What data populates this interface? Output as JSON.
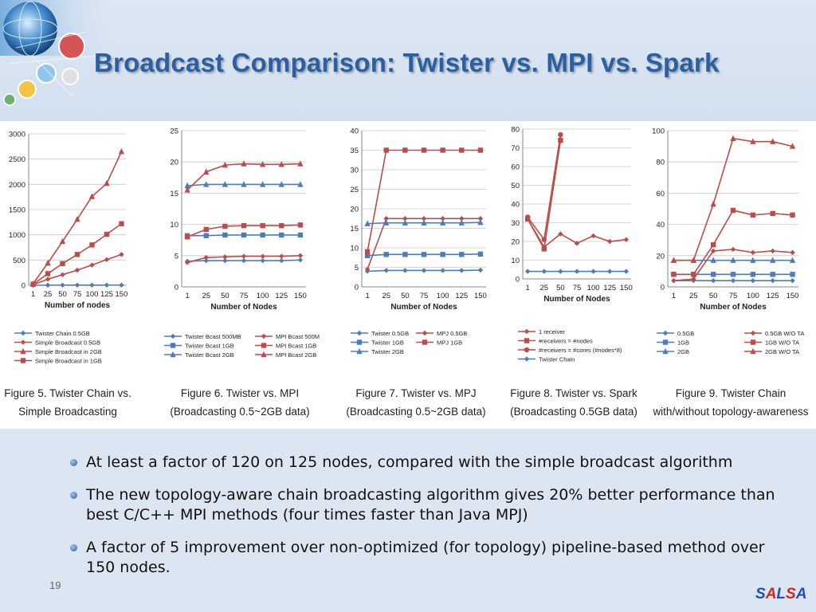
{
  "slide": {
    "title": "Broadcast Comparison: Twister vs. MPI vs. Spark",
    "page_number": "19",
    "brand": [
      "S",
      "A",
      "L",
      "S",
      "A"
    ],
    "brand_colors": [
      "#1f4fbf",
      "#d8261c",
      "#1f4fbf",
      "#d8261c",
      "#1f4fbf"
    ],
    "header_icon": "globe-network-logo-icon",
    "bullet_icon": "blue-orb-bullet-icon",
    "bullets": [
      "At least a factor of 120 on 125 nodes, compared with the simple broadcast algorithm",
      "The new topology-aware chain broadcasting algorithm gives 20% better performance than best C/C++ MPI methods (four times faster than Java MPJ)",
      "A factor of 5 improvement over non-optimized (for topology) pipeline-based method over 150 nodes."
    ]
  },
  "chart_data": [
    {
      "type": "line",
      "caption": [
        "Figure 5. Twister Chain vs.",
        "Simple Broadcasting"
      ],
      "xlabel": "Number of nodes",
      "ylabel": "",
      "x": [
        "1",
        "25",
        "50",
        "75",
        "100",
        "125",
        "150"
      ],
      "ylim": [
        0,
        3000
      ],
      "yticks": [
        0,
        500,
        1000,
        1500,
        2000,
        2500,
        3000
      ],
      "legend_columns": 1,
      "series": [
        {
          "name": "Twister Chain 0.5GB",
          "color": "#4a7ebb",
          "marker": "diamond",
          "values": [
            0,
            2,
            3,
            3,
            3,
            4,
            4
          ]
        },
        {
          "name": "Simple Broadcast 0.5GB",
          "color": "#be4b48",
          "marker": "diamond",
          "values": [
            10,
            120,
            210,
            300,
            400,
            510,
            610
          ]
        },
        {
          "name": "Simple Broadcast in 2GB",
          "color": "#be4b48",
          "marker": "triangle",
          "values": [
            30,
            440,
            870,
            1310,
            1760,
            2020,
            2650
          ]
        },
        {
          "name": "Simple Broadcast in 1GB",
          "color": "#be4b48",
          "marker": "square",
          "values": [
            20,
            230,
            430,
            610,
            800,
            1010,
            1220
          ]
        }
      ]
    },
    {
      "type": "line",
      "caption": [
        "Figure 6. Twister vs. MPI",
        "(Broadcasting 0.5~2GB data)"
      ],
      "xlabel": "Number of Nodes",
      "ylabel": "",
      "x": [
        "1",
        "25",
        "50",
        "75",
        "100",
        "125",
        "150"
      ],
      "ylim": [
        0,
        25
      ],
      "yticks": [
        0,
        5,
        10,
        15,
        20,
        25
      ],
      "legend_columns": 2,
      "series": [
        {
          "name": "Twister Bcast 500MB",
          "color": "#4a7ebb",
          "marker": "diamond",
          "values": [
            4.1,
            4.2,
            4.2,
            4.2,
            4.2,
            4.2,
            4.3
          ]
        },
        {
          "name": "MPI Bcast 500M",
          "color": "#be4b48",
          "marker": "diamond",
          "values": [
            3.9,
            4.7,
            4.8,
            4.9,
            4.9,
            4.9,
            5.0
          ]
        },
        {
          "name": "Twister Bcast 1GB",
          "color": "#4a7ebb",
          "marker": "square",
          "values": [
            8.2,
            8.2,
            8.3,
            8.3,
            8.3,
            8.3,
            8.3
          ]
        },
        {
          "name": "MPI Bcast 1GB",
          "color": "#be4b48",
          "marker": "square",
          "values": [
            8.0,
            9.2,
            9.7,
            9.8,
            9.8,
            9.8,
            9.9
          ]
        },
        {
          "name": "Twister Bcast 2GB",
          "color": "#4a7ebb",
          "marker": "triangle",
          "values": [
            16.2,
            16.4,
            16.4,
            16.4,
            16.4,
            16.4,
            16.4
          ]
        },
        {
          "name": "MPI Bcast 2GB",
          "color": "#be4b48",
          "marker": "triangle",
          "values": [
            15.5,
            18.4,
            19.5,
            19.7,
            19.6,
            19.6,
            19.7
          ]
        }
      ]
    },
    {
      "type": "line",
      "caption": [
        "Figure 7. Twister vs. MPJ",
        "(Broadcasting 0.5~2GB data)"
      ],
      "xlabel": "Number of Nodes",
      "ylabel": "",
      "x": [
        "1",
        "25",
        "50",
        "75",
        "100",
        "125",
        "150"
      ],
      "ylim": [
        0,
        40
      ],
      "yticks": [
        0,
        5,
        10,
        15,
        20,
        25,
        30,
        35,
        40
      ],
      "legend_columns": 2,
      "series": [
        {
          "name": "Twister 0.5GB",
          "color": "#4a7ebb",
          "marker": "diamond",
          "values": [
            4.0,
            4.2,
            4.2,
            4.2,
            4.2,
            4.2,
            4.3
          ]
        },
        {
          "name": "MPJ 0.5GB",
          "color": "#be4b48",
          "marker": "diamond",
          "values": [
            4.5,
            17.5,
            17.5,
            17.5,
            17.5,
            17.5,
            17.5
          ]
        },
        {
          "name": "Twister 1GB",
          "color": "#4a7ebb",
          "marker": "square",
          "values": [
            8.0,
            8.3,
            8.3,
            8.3,
            8.3,
            8.3,
            8.4
          ]
        },
        {
          "name": "MPJ 1GB",
          "color": "#be4b48",
          "marker": "square",
          "values": [
            9.0,
            35.0,
            35.0,
            35.0,
            35.0,
            35.0,
            35.0
          ]
        },
        {
          "name": "Twister  2GB",
          "color": "#4a7ebb",
          "marker": "triangle",
          "values": [
            16.2,
            16.4,
            16.4,
            16.4,
            16.4,
            16.4,
            16.5
          ]
        }
      ]
    },
    {
      "type": "line",
      "caption": [
        "Figure 8. Twister vs. Spark",
        "(Broadcasting 0.5GB data)"
      ],
      "xlabel": "Number of Nodes",
      "ylabel": "",
      "x": [
        "1",
        "25",
        "50",
        "75",
        "100",
        "125",
        "150"
      ],
      "ylim": [
        0,
        80
      ],
      "yticks": [
        0,
        10,
        20,
        30,
        40,
        50,
        60,
        70,
        80
      ],
      "legend_columns": 1,
      "series": [
        {
          "name": "1 receiver",
          "color": "#be4b48",
          "marker": "diamond",
          "values": [
            32,
            17,
            24,
            19,
            23,
            20,
            21
          ]
        },
        {
          "name": "#receivers = #nodes",
          "color": "#be4b48",
          "marker": "square",
          "values": [
            32,
            16,
            74,
            null,
            null,
            null,
            null
          ]
        },
        {
          "name": "#receivers = #cores (#nodes*8)",
          "color": "#be4b48",
          "marker": "circle",
          "values": [
            33,
            21,
            77,
            null,
            null,
            null,
            null
          ]
        },
        {
          "name": "Twister Chain",
          "color": "#4a7ebb",
          "marker": "diamond",
          "values": [
            4,
            4,
            4,
            4,
            4,
            4,
            4
          ]
        }
      ]
    },
    {
      "type": "line",
      "caption": [
        "Figure 9. Twister Chain",
        "with/without topology-awareness"
      ],
      "xlabel": "Number of Nodes",
      "ylabel": "",
      "x": [
        "1",
        "25",
        "50",
        "75",
        "100",
        "125",
        "150"
      ],
      "ylim": [
        0,
        100
      ],
      "yticks": [
        0,
        20,
        40,
        60,
        80,
        100
      ],
      "legend_columns": 2,
      "series": [
        {
          "name": "0.5GB",
          "color": "#4a7ebb",
          "marker": "diamond",
          "values": [
            4,
            4,
            4,
            4,
            4,
            4,
            4
          ]
        },
        {
          "name": "0.5GB W/O TA",
          "color": "#be4b48",
          "marker": "diamond",
          "values": [
            4,
            5,
            23,
            24,
            22,
            23,
            22
          ]
        },
        {
          "name": "1GB",
          "color": "#4a7ebb",
          "marker": "square",
          "values": [
            8,
            8,
            8,
            8,
            8,
            8,
            8
          ]
        },
        {
          "name": "1GB W/O TA",
          "color": "#be4b48",
          "marker": "square",
          "values": [
            8,
            8,
            27,
            49,
            46,
            47,
            46
          ]
        },
        {
          "name": "2GB",
          "color": "#4a7ebb",
          "marker": "triangle",
          "values": [
            17,
            17,
            17,
            17,
            17,
            17,
            17
          ]
        },
        {
          "name": "2GB W/O TA",
          "color": "#be4b48",
          "marker": "triangle",
          "values": [
            17,
            17,
            53,
            95,
            93,
            93,
            90
          ]
        }
      ]
    }
  ]
}
